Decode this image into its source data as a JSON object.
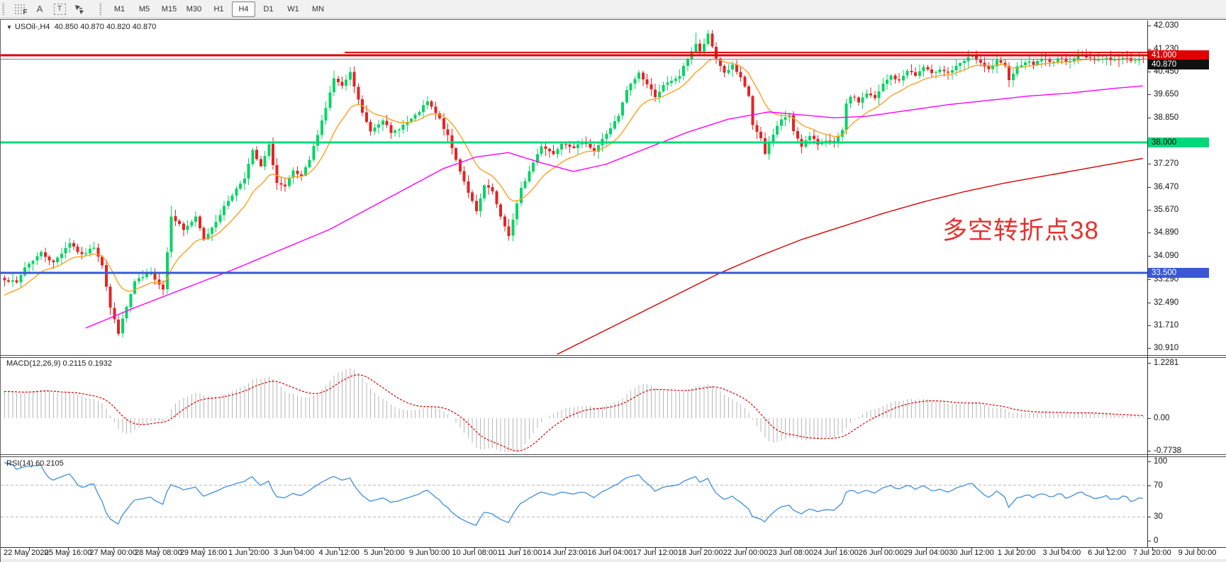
{
  "toolbar": {
    "tools": [
      {
        "name": "fibonacci-tool",
        "glyph": "F"
      },
      {
        "name": "text-tool",
        "glyph": "A"
      },
      {
        "name": "label-tool",
        "glyph": "T"
      },
      {
        "name": "arrows-tool",
        "glyph": "arrows"
      }
    ],
    "timeframes": [
      "M1",
      "M5",
      "M15",
      "M30",
      "H1",
      "H4",
      "D1",
      "W1",
      "MN"
    ],
    "active_timeframe": "H4"
  },
  "chart": {
    "symbol_title": "USOil-,H4",
    "ohlc": "40.850 40.870 40.820 40.870",
    "annotation": {
      "text": "多空转折点38",
      "color": "#e6312e"
    }
  },
  "price_axis": {
    "tick_labels": [
      "42.030",
      "41.230",
      "40.450",
      "39.650",
      "38.850",
      "37.270",
      "36.470",
      "35.670",
      "34.890",
      "34.090",
      "33.290",
      "32.490",
      "31.710",
      "30.910"
    ],
    "badges": [
      {
        "label": "41.000",
        "price": 41.0,
        "bg": "#e00000",
        "fg": "#ffffff"
      },
      {
        "label": "40.870",
        "price": 40.87,
        "bg": "#111111",
        "fg": "#ffffff",
        "offset": 8
      },
      {
        "label": "38.000",
        "price": 38.0,
        "bg": "#00d87a",
        "fg": "#000000"
      },
      {
        "label": "33.500",
        "price": 33.5,
        "bg": "#3a57d7",
        "fg": "#ffffff"
      }
    ]
  },
  "macd_panel": {
    "label": "MACD(12,26,9)",
    "values": "0.2115 0.1932",
    "axis": [
      "1.2281",
      "0.00",
      "-0.7738"
    ]
  },
  "rsi_panel": {
    "label": "RSI(14)",
    "value": "60.2105",
    "axis": [
      "100",
      "70",
      "30",
      "0"
    ],
    "levels": [
      70,
      30
    ]
  },
  "time_axis": [
    "22 May 2020",
    "25 May 16:00",
    "27 May 00:00",
    "28 May 08:00",
    "29 May 16:00",
    "1 Jun 20:00",
    "3 Jun 04:00",
    "4 Jun 12:00",
    "5 Jun 20:00",
    "9 Jun 00:00",
    "10 Jun 08:00",
    "11 Jun 16:00",
    "14 Jun 23:00",
    "16 Jun 04:00",
    "17 Jun 12:00",
    "18 Jun 20:00",
    "22 Jun 00:00",
    "23 Jun 08:00",
    "24 Jun 16:00",
    "26 Jun 00:00",
    "29 Jun 04:00",
    "30 Jun 12:00",
    "1 Jul 20:00",
    "3 Jul 04:00",
    "6 Jul 12:00",
    "7 Jul 20:00",
    "9 Jul 00:00"
  ],
  "chart_data": {
    "type": "candlestick",
    "instrument": "USOil",
    "period": "H4",
    "candles": 281,
    "visible_price_range": [
      30.67,
      42.2
    ],
    "candle_colors": {
      "bull": "#06d464",
      "bear": "#e52323"
    },
    "close_anchors": [
      [
        0,
        33.3
      ],
      [
        3,
        33.15
      ],
      [
        5,
        33.7
      ],
      [
        9,
        34.2
      ],
      [
        12,
        33.85
      ],
      [
        16,
        34.55
      ],
      [
        19,
        34.1
      ],
      [
        22,
        34.4
      ],
      [
        24,
        33.8
      ],
      [
        26,
        32.3
      ],
      [
        28,
        31.45
      ],
      [
        32,
        33.2
      ],
      [
        36,
        33.5
      ],
      [
        39,
        32.95
      ],
      [
        41,
        35.5
      ],
      [
        44,
        35.0
      ],
      [
        47,
        35.4
      ],
      [
        49,
        34.65
      ],
      [
        52,
        35.3
      ],
      [
        55,
        36.0
      ],
      [
        59,
        36.8
      ],
      [
        61,
        37.7
      ],
      [
        63,
        37.15
      ],
      [
        65,
        37.9
      ],
      [
        67,
        36.6
      ],
      [
        69,
        36.45
      ],
      [
        71,
        37.0
      ],
      [
        73,
        36.8
      ],
      [
        75,
        37.4
      ],
      [
        77,
        38.3
      ],
      [
        79,
        39.2
      ],
      [
        81,
        40.2
      ],
      [
        83,
        39.9
      ],
      [
        85,
        40.4
      ],
      [
        88,
        39.0
      ],
      [
        90,
        38.4
      ],
      [
        93,
        38.8
      ],
      [
        95,
        38.3
      ],
      [
        98,
        38.6
      ],
      [
        101,
        38.9
      ],
      [
        104,
        39.4
      ],
      [
        107,
        38.8
      ],
      [
        109,
        38.2
      ],
      [
        111,
        37.4
      ],
      [
        114,
        36.3
      ],
      [
        116,
        35.6
      ],
      [
        118,
        36.5
      ],
      [
        120,
        36.3
      ],
      [
        122,
        35.4
      ],
      [
        124,
        34.8
      ],
      [
        127,
        36.4
      ],
      [
        130,
        37.3
      ],
      [
        132,
        37.9
      ],
      [
        135,
        37.6
      ],
      [
        137,
        38.0
      ],
      [
        140,
        37.85
      ],
      [
        143,
        38.0
      ],
      [
        145,
        37.7
      ],
      [
        148,
        38.3
      ],
      [
        151,
        38.9
      ],
      [
        153,
        39.8
      ],
      [
        156,
        40.4
      ],
      [
        158,
        40.0
      ],
      [
        160,
        39.6
      ],
      [
        162,
        39.95
      ],
      [
        164,
        40.1
      ],
      [
        166,
        40.3
      ],
      [
        168,
        40.9
      ],
      [
        170,
        41.4
      ],
      [
        171,
        41.1
      ],
      [
        173,
        41.7
      ],
      [
        175,
        40.9
      ],
      [
        177,
        40.4
      ],
      [
        179,
        40.65
      ],
      [
        181,
        40.2
      ],
      [
        183,
        39.6
      ],
      [
        184,
        38.6
      ],
      [
        186,
        38.1
      ],
      [
        187,
        37.6
      ],
      [
        189,
        38.3
      ],
      [
        191,
        38.8
      ],
      [
        193,
        38.9
      ],
      [
        194,
        38.4
      ],
      [
        196,
        37.9
      ],
      [
        198,
        38.2
      ],
      [
        200,
        37.95
      ],
      [
        202,
        38.1
      ],
      [
        204,
        37.95
      ],
      [
        206,
        38.4
      ],
      [
        207,
        39.3
      ],
      [
        208,
        39.6
      ],
      [
        210,
        39.4
      ],
      [
        212,
        39.7
      ],
      [
        214,
        39.5
      ],
      [
        216,
        40.0
      ],
      [
        218,
        40.3
      ],
      [
        220,
        40.1
      ],
      [
        222,
        40.5
      ],
      [
        224,
        40.3
      ],
      [
        226,
        40.6
      ],
      [
        228,
        40.35
      ],
      [
        230,
        40.55
      ],
      [
        232,
        40.4
      ],
      [
        234,
        40.6
      ],
      [
        236,
        40.8
      ],
      [
        238,
        41.0
      ],
      [
        240,
        40.7
      ],
      [
        242,
        40.5
      ],
      [
        244,
        40.8
      ],
      [
        246,
        40.6
      ],
      [
        247,
        40.2
      ],
      [
        249,
        40.6
      ],
      [
        251,
        40.8
      ],
      [
        253,
        40.7
      ],
      [
        255,
        40.9
      ],
      [
        257,
        40.75
      ],
      [
        259,
        40.9
      ],
      [
        261,
        40.8
      ],
      [
        263,
        40.9
      ],
      [
        265,
        41.0
      ],
      [
        267,
        40.9
      ],
      [
        269,
        40.85
      ],
      [
        271,
        40.92
      ],
      [
        273,
        40.82
      ],
      [
        275,
        40.9
      ],
      [
        277,
        40.85
      ],
      [
        280,
        40.87
      ]
    ],
    "wick_overrides": [
      [
        173,
        "h",
        41.82
      ],
      [
        170,
        "h",
        41.78
      ],
      [
        28,
        "l",
        31.32
      ],
      [
        124,
        "l",
        34.62
      ],
      [
        85,
        "h",
        40.52
      ],
      [
        41,
        "h",
        35.82
      ],
      [
        81,
        "h",
        40.48
      ]
    ],
    "hlines": [
      {
        "name": "resistance-upper",
        "price": 41.1,
        "color": "#e00000",
        "width": 2,
        "start_frac": 0.3
      },
      {
        "name": "resistance-41",
        "price": 41.0,
        "color": "#e00000",
        "width": 3,
        "start_frac": 0
      },
      {
        "name": "pivot-38",
        "price": 38.0,
        "color": "#00d87a",
        "width": 3,
        "start_frac": 0
      },
      {
        "name": "support-33-5",
        "price": 33.5,
        "color": "#3a57d7",
        "width": 3,
        "start_frac": 0
      }
    ],
    "current_price": {
      "price": 40.87,
      "color": "#808080"
    },
    "moving_averages": {
      "fast": {
        "color": "#ffa020",
        "type": "ema",
        "period": 13
      },
      "mid": {
        "color": "#ff00ff",
        "anchors": [
          [
            20,
            31.6
          ],
          [
            32,
            32.3
          ],
          [
            44,
            32.95
          ],
          [
            56,
            33.6
          ],
          [
            68,
            34.3
          ],
          [
            80,
            35.0
          ],
          [
            88,
            35.6
          ],
          [
            100,
            36.5
          ],
          [
            108,
            37.1
          ],
          [
            116,
            37.5
          ],
          [
            124,
            37.65
          ],
          [
            132,
            37.3
          ],
          [
            140,
            37.0
          ],
          [
            148,
            37.25
          ],
          [
            158,
            37.8
          ],
          [
            168,
            38.35
          ],
          [
            178,
            38.8
          ],
          [
            188,
            39.05
          ],
          [
            196,
            38.95
          ],
          [
            204,
            38.85
          ],
          [
            212,
            38.9
          ],
          [
            222,
            39.1
          ],
          [
            232,
            39.3
          ],
          [
            242,
            39.45
          ],
          [
            252,
            39.6
          ],
          [
            262,
            39.7
          ],
          [
            272,
            39.85
          ],
          [
            280,
            39.95
          ]
        ]
      },
      "slow": {
        "color": "#d40000",
        "anchors": [
          [
            136,
            30.7
          ],
          [
            146,
            31.4
          ],
          [
            156,
            32.1
          ],
          [
            166,
            32.8
          ],
          [
            176,
            33.5
          ],
          [
            186,
            34.1
          ],
          [
            196,
            34.65
          ],
          [
            206,
            35.1
          ],
          [
            216,
            35.55
          ],
          [
            226,
            35.95
          ],
          [
            236,
            36.3
          ],
          [
            246,
            36.6
          ],
          [
            256,
            36.85
          ],
          [
            266,
            37.1
          ],
          [
            274,
            37.3
          ],
          [
            280,
            37.45
          ]
        ]
      }
    },
    "macd": {
      "fast": 12,
      "slow": 26,
      "signal": 9,
      "scale_max": 1.2281,
      "scale_min": -0.7738,
      "hist_color": "#b5b5b5",
      "signal_color": "#d90000",
      "last": 0.2115,
      "last_signal": 0.1932
    },
    "rsi": {
      "period": 14,
      "color": "#3e8ede",
      "last": 60.2105,
      "levels": [
        70,
        30
      ]
    }
  }
}
